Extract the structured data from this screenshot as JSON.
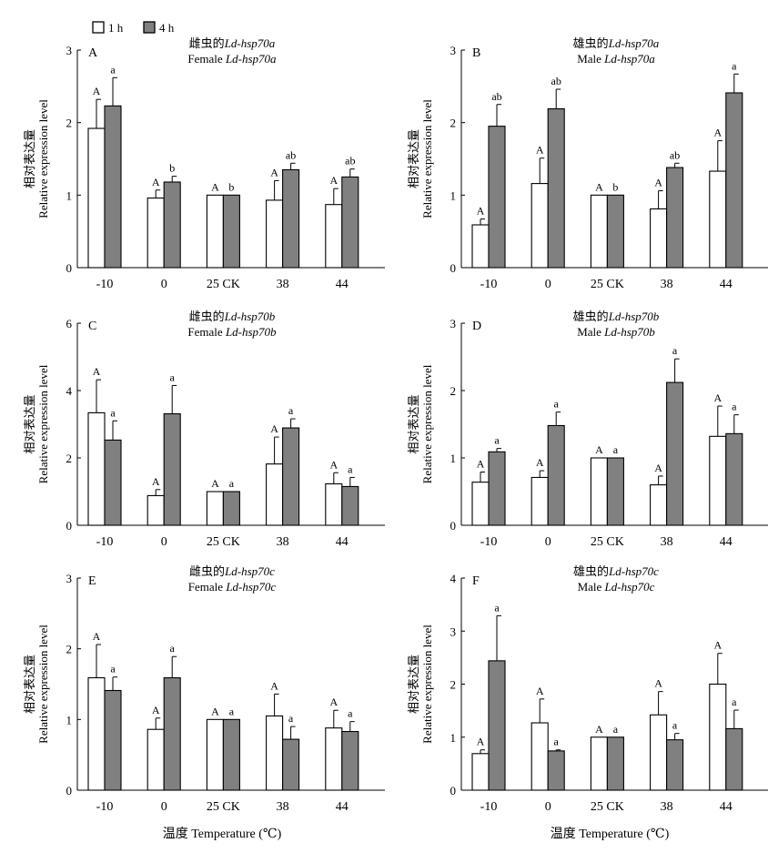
{
  "legend": {
    "items": [
      {
        "label": "1 h",
        "color": "#ffffff"
      },
      {
        "label": "4 h",
        "color": "#808080"
      }
    ]
  },
  "shared": {
    "categories": [
      "-10",
      "0",
      "25 CK",
      "38",
      "44"
    ],
    "ylabel_cn": "相对表达量",
    "ylabel_en": "Relative expression level",
    "xlabel": "温度 Temperature (℃)"
  },
  "chart_data": [
    {
      "type": "bar",
      "panel_letter": "A",
      "title_cn_prefix": "雌虫的",
      "title_cn_italic": "Ld-hsp70a",
      "title_en_prefix": "Female ",
      "title_en_italic": "Ld-hsp70a",
      "ylim": [
        0,
        3
      ],
      "yticks": [
        "0",
        "1",
        "2",
        "3"
      ],
      "categories": [
        "-10",
        "0",
        "25 CK",
        "38",
        "44"
      ],
      "series": [
        {
          "name": "1 h",
          "values": [
            1.92,
            0.96,
            1.0,
            0.93,
            0.87
          ],
          "errors": [
            0.4,
            0.11,
            0.0,
            0.27,
            0.22
          ],
          "labels": [
            "A",
            "A",
            "A",
            "A",
            "A"
          ]
        },
        {
          "name": "4 h",
          "values": [
            2.23,
            1.18,
            1.0,
            1.35,
            1.25
          ],
          "errors": [
            0.39,
            0.08,
            0.0,
            0.09,
            0.11
          ],
          "labels": [
            "a",
            "b",
            "b",
            "ab",
            "ab"
          ]
        }
      ]
    },
    {
      "type": "bar",
      "panel_letter": "B",
      "title_cn_prefix": "雄虫的",
      "title_cn_italic": "Ld-hsp70a",
      "title_en_prefix": "Male ",
      "title_en_italic": "Ld-hsp70a",
      "ylim": [
        0,
        3
      ],
      "yticks": [
        "0",
        "1",
        "2",
        "3"
      ],
      "categories": [
        "-10",
        "0",
        "25 CK",
        "38",
        "44"
      ],
      "series": [
        {
          "name": "1 h",
          "values": [
            0.59,
            1.16,
            1.0,
            0.81,
            1.33
          ],
          "errors": [
            0.08,
            0.35,
            0.0,
            0.25,
            0.42
          ],
          "labels": [
            "A",
            "A",
            "A",
            "A",
            "A"
          ]
        },
        {
          "name": "4 h",
          "values": [
            1.95,
            2.19,
            1.0,
            1.38,
            2.41
          ],
          "errors": [
            0.3,
            0.27,
            0.0,
            0.06,
            0.26
          ],
          "labels": [
            "ab",
            "ab",
            "b",
            "ab",
            "a"
          ]
        }
      ]
    },
    {
      "type": "bar",
      "panel_letter": "C",
      "title_cn_prefix": "雌虫的",
      "title_cn_italic": "Ld-hsp70b",
      "title_en_prefix": "Female ",
      "title_en_italic": "Ld-hsp70b",
      "ylim": [
        0,
        6
      ],
      "yticks": [
        "0",
        "2",
        "4",
        "6"
      ],
      "categories": [
        "-10",
        "0",
        "25 CK",
        "38",
        "44"
      ],
      "series": [
        {
          "name": "1 h",
          "values": [
            3.34,
            0.88,
            1.0,
            1.82,
            1.23
          ],
          "errors": [
            0.98,
            0.18,
            0.0,
            0.8,
            0.33
          ],
          "labels": [
            "A",
            "A",
            "A",
            "A",
            "A"
          ]
        },
        {
          "name": "4 h",
          "values": [
            2.53,
            3.31,
            1.0,
            2.89,
            1.15
          ],
          "errors": [
            0.57,
            0.84,
            0.0,
            0.27,
            0.27
          ],
          "labels": [
            "a",
            "a",
            "a",
            "a",
            "a"
          ]
        }
      ]
    },
    {
      "type": "bar",
      "panel_letter": "D",
      "title_cn_prefix": "雄虫的",
      "title_cn_italic": "Ld-hsp70b",
      "title_en_prefix": "Male ",
      "title_en_italic": "Ld-hsp70b",
      "ylim": [
        0,
        3
      ],
      "yticks": [
        "0",
        "1",
        "2",
        "3"
      ],
      "categories": [
        "-10",
        "0",
        "25 CK",
        "38",
        "44"
      ],
      "series": [
        {
          "name": "1 h",
          "values": [
            0.64,
            0.71,
            1.0,
            0.6,
            1.32
          ],
          "errors": [
            0.15,
            0.1,
            0.0,
            0.13,
            0.45
          ],
          "labels": [
            "A",
            "A",
            "A",
            "A",
            "A"
          ]
        },
        {
          "name": "4 h",
          "values": [
            1.09,
            1.48,
            1.0,
            2.12,
            1.36
          ],
          "errors": [
            0.05,
            0.2,
            0.0,
            0.35,
            0.28
          ],
          "labels": [
            "a",
            "a",
            "a",
            "a",
            "a"
          ]
        }
      ]
    },
    {
      "type": "bar",
      "panel_letter": "E",
      "title_cn_prefix": "雌虫的",
      "title_cn_italic": "Ld-hsp70c",
      "title_en_prefix": "Female ",
      "title_en_italic": "Ld-hsp70c",
      "ylim": [
        0,
        3
      ],
      "yticks": [
        "0",
        "1",
        "2",
        "3"
      ],
      "categories": [
        "-10",
        "0",
        "25 CK",
        "38",
        "44"
      ],
      "series": [
        {
          "name": "1 h",
          "values": [
            1.59,
            0.86,
            1.0,
            1.05,
            0.88
          ],
          "errors": [
            0.47,
            0.16,
            0.0,
            0.31,
            0.25
          ],
          "labels": [
            "A",
            "A",
            "A",
            "A",
            "A"
          ]
        },
        {
          "name": "4 h",
          "values": [
            1.41,
            1.59,
            1.0,
            0.72,
            0.83
          ],
          "errors": [
            0.19,
            0.3,
            0.0,
            0.18,
            0.14
          ],
          "labels": [
            "a",
            "a",
            "a",
            "a",
            "a"
          ]
        }
      ]
    },
    {
      "type": "bar",
      "panel_letter": "F",
      "title_cn_prefix": "雄虫的",
      "title_cn_italic": "Ld-hsp70c",
      "title_en_prefix": "Male ",
      "title_en_italic": "Ld-hsp70c",
      "ylim": [
        0,
        4
      ],
      "yticks": [
        "0",
        "1",
        "2",
        "3",
        "4"
      ],
      "categories": [
        "-10",
        "0",
        "25 CK",
        "38",
        "44"
      ],
      "series": [
        {
          "name": "1 h",
          "values": [
            0.69,
            1.27,
            1.0,
            1.42,
            2.0
          ],
          "errors": [
            0.07,
            0.45,
            0.0,
            0.44,
            0.58
          ],
          "labels": [
            "A",
            "A",
            "A",
            "A",
            "A"
          ]
        },
        {
          "name": "4 h",
          "values": [
            2.44,
            0.74,
            1.0,
            0.95,
            1.16
          ],
          "errors": [
            0.85,
            0.02,
            0.0,
            0.12,
            0.35
          ],
          "labels": [
            "a",
            "a",
            "a",
            "a",
            "a"
          ]
        }
      ]
    }
  ]
}
